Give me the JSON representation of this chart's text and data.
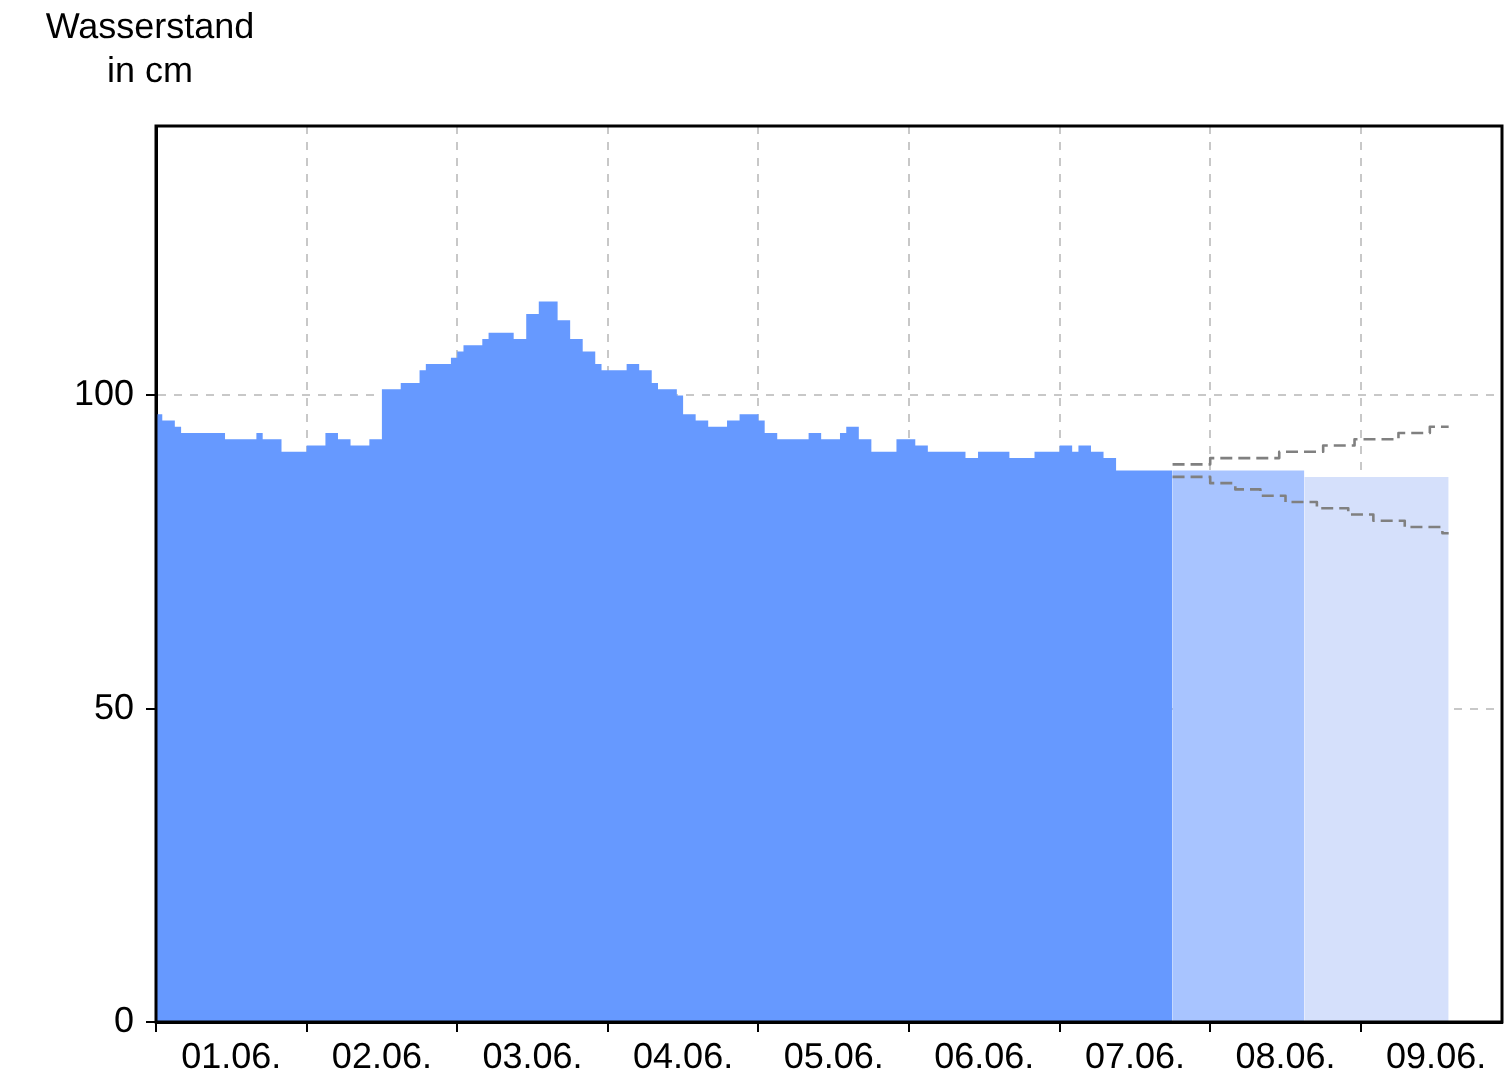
{
  "chart_data": {
    "type": "area",
    "ylabel": "Wasserstand in cm",
    "xlim": [
      "--06-01T00:00",
      "--06-09T22:30"
    ],
    "ylim": [
      0,
      143
    ],
    "xticks": [
      {
        "value": "--06-01T00:00",
        "label": null
      },
      {
        "value": "--06-01T12:00",
        "label": "01.06."
      },
      {
        "value": "--06-02T00:00",
        "label": null
      },
      {
        "value": "--06-02T12:00",
        "label": "02.06."
      },
      {
        "value": "--06-03T00:00",
        "label": null
      },
      {
        "value": "--06-03T12:00",
        "label": "03.06."
      },
      {
        "value": "--06-04T00:00",
        "label": null
      },
      {
        "value": "--06-04T12:00",
        "label": "04.06."
      },
      {
        "value": "--06-05T00:00",
        "label": null
      },
      {
        "value": "--06-05T12:00",
        "label": "05.06."
      },
      {
        "value": "--06-06T00:00",
        "label": null
      },
      {
        "value": "--06-06T12:00",
        "label": "06.06."
      },
      {
        "value": "--06-07T00:00",
        "label": null
      },
      {
        "value": "--06-07T12:00",
        "label": "07.06."
      },
      {
        "value": "--06-08T00:00",
        "label": null
      },
      {
        "value": "--06-08T12:00",
        "label": "08.06."
      },
      {
        "value": "--06-09T00:00",
        "label": null
      },
      {
        "value": "--06-09T12:00",
        "label": "09.06."
      }
    ],
    "yticks": [
      0,
      50,
      100
    ],
    "grid": true,
    "legend": false,
    "marker": "none",
    "series": [
      {
        "color": "#6699ff",
        "x": [
          "--06-01T00:00",
          "--06-01T01:00",
          "--06-01T03:00",
          "--06-01T04:00",
          "--06-01T11:00",
          "--06-01T16:00",
          "--06-01T17:00",
          "--06-01T20:00",
          "--06-02T00:00",
          "--06-02T03:00",
          "--06-02T05:00",
          "--06-02T07:00",
          "--06-02T10:00",
          "--06-02T12:00",
          "--06-02T15:00",
          "--06-02T18:00",
          "--06-02T19:00",
          "--06-02T23:00",
          "--06-03T00:00",
          "--06-03T01:00",
          "--06-03T04:00",
          "--06-03T05:00",
          "--06-03T09:00",
          "--06-03T11:00",
          "--06-03T13:00",
          "--06-03T16:00",
          "--06-03T18:00",
          "--06-03T20:00",
          "--06-03T22:00",
          "--06-03T23:00",
          "--06-04T03:00",
          "--06-04T05:00",
          "--06-04T07:00",
          "--06-04T08:00",
          "--06-04T11:00",
          "--06-04T12:00",
          "--06-04T14:00",
          "--06-04T16:00",
          "--06-04T19:00",
          "--06-04T21:00",
          "--06-05T00:00",
          "--06-05T01:00",
          "--06-05T03:00",
          "--06-05T08:00",
          "--06-05T10:00",
          "--06-05T13:00",
          "--06-05T14:00",
          "--06-05T16:00",
          "--06-05T18:00",
          "--06-05T22:00",
          "--06-06T01:00",
          "--06-06T03:00",
          "--06-06T09:00",
          "--06-06T11:00",
          "--06-06T16:00",
          "--06-06T20:00",
          "--06-07T00:00",
          "--06-07T02:00",
          "--06-07T03:00",
          "--06-07T05:00",
          "--06-07T07:00",
          "--06-07T09:00",
          "--06-07T18:00"
        ],
        "values": [
          97,
          96,
          95,
          94,
          93,
          94,
          93,
          91,
          92,
          94,
          93,
          92,
          93,
          101,
          102,
          104,
          105,
          106,
          107,
          108,
          109,
          110,
          109,
          113,
          115,
          112,
          109,
          107,
          105,
          104,
          105,
          104,
          102,
          101,
          100,
          97,
          96,
          95,
          96,
          97,
          96,
          94,
          93,
          94,
          93,
          94,
          95,
          93,
          91,
          93,
          92,
          91,
          90,
          91,
          90,
          91,
          92,
          91,
          92,
          91,
          90,
          88,
          88
        ]
      },
      {
        "color": "#a8c4ff",
        "x": [
          "--06-07T18:00",
          "--06-08T15:00"
        ],
        "values": [
          88,
          88
        ]
      },
      {
        "color": "#d5e0fb",
        "x": [
          "--06-08T15:00",
          "--06-09T14:00"
        ],
        "values": [
          87,
          87
        ]
      },
      {
        "type": "step",
        "color": "#808080",
        "line_style": "dashed",
        "x": [
          "--06-07T18:00",
          "--06-08T00:00",
          "--06-08T11:00",
          "--06-08T18:00",
          "--06-08T23:00",
          "--06-09T06:00",
          "--06-09T11:00",
          "--06-09T14:00"
        ],
        "values": [
          89,
          90,
          91,
          92,
          93,
          94,
          95,
          95
        ]
      },
      {
        "type": "step",
        "color": "#808080",
        "line_style": "dashed",
        "x": [
          "--06-07T18:00",
          "--06-08T00:00",
          "--06-08T04:00",
          "--06-08T08:00",
          "--06-08T12:00",
          "--06-08T17:00",
          "--06-08T22:00",
          "--06-09T02:00",
          "--06-09T07:00",
          "--06-09T13:00",
          "--06-09T14:00"
        ],
        "values": [
          87,
          86,
          85,
          84,
          83,
          82,
          81,
          80,
          79,
          78,
          78
        ]
      }
    ]
  }
}
